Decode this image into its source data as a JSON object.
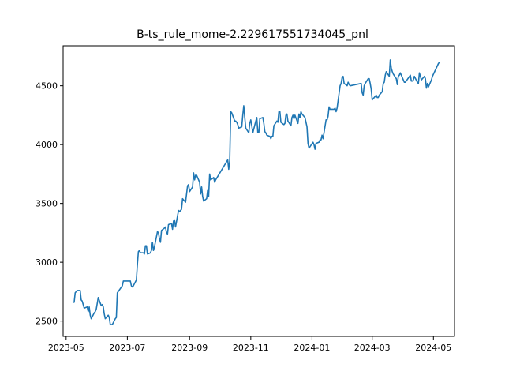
{
  "chart_data": {
    "type": "line",
    "title": "B-ts_rule_mome-2.229617551734045_pnl",
    "xlabel": "",
    "ylabel": "",
    "grid": false,
    "legend": "none",
    "line_color": "#1f77b4",
    "xlim": [
      "2023-04-28",
      "2024-05-22"
    ],
    "ylim": [
      2370,
      4840
    ],
    "x_ticks": [
      "2023-05",
      "2023-07",
      "2023-09",
      "2023-11",
      "2024-01",
      "2024-03",
      "2024-05"
    ],
    "x_tick_dates": [
      "2023-05-01",
      "2023-07-01",
      "2023-09-01",
      "2023-11-01",
      "2024-01-01",
      "2024-03-01",
      "2024-05-01"
    ],
    "y_ticks": [
      2500,
      3000,
      3500,
      4000,
      4500
    ],
    "y_tick_labels": [
      "2500",
      "3000",
      "3500",
      "4000",
      "4500"
    ],
    "series": [
      {
        "x": [
          "2023-05-08",
          "2023-05-09",
          "2023-05-10",
          "2023-05-11",
          "2023-05-12",
          "2023-05-15",
          "2023-05-16",
          "2023-05-17",
          "2023-05-18",
          "2023-05-19",
          "2023-05-22",
          "2023-05-23",
          "2023-05-24",
          "2023-05-25",
          "2023-05-26",
          "2023-05-29",
          "2023-05-30",
          "2023-05-31",
          "2023-06-01",
          "2023-06-02",
          "2023-06-05",
          "2023-06-06",
          "2023-06-07",
          "2023-06-08",
          "2023-06-09",
          "2023-06-12",
          "2023-06-13",
          "2023-06-14",
          "2023-06-15",
          "2023-06-16",
          "2023-06-19",
          "2023-06-20",
          "2023-06-21",
          "2023-06-26",
          "2023-06-27",
          "2023-06-28",
          "2023-06-29",
          "2023-06-30",
          "2023-07-03",
          "2023-07-04",
          "2023-07-05",
          "2023-07-06",
          "2023-07-07",
          "2023-07-10",
          "2023-07-11",
          "2023-07-12",
          "2023-07-13",
          "2023-07-14",
          "2023-07-17",
          "2023-07-18",
          "2023-07-19",
          "2023-07-20",
          "2023-07-21",
          "2023-07-24",
          "2023-07-25",
          "2023-07-26",
          "2023-07-27",
          "2023-07-28",
          "2023-07-31",
          "2023-08-01",
          "2023-08-02",
          "2023-08-03",
          "2023-08-04",
          "2023-08-07",
          "2023-08-08",
          "2023-08-09",
          "2023-08-10",
          "2023-08-11",
          "2023-08-14",
          "2023-08-15",
          "2023-08-16",
          "2023-08-17",
          "2023-08-18",
          "2023-08-21",
          "2023-08-22",
          "2023-08-23",
          "2023-08-24",
          "2023-08-25",
          "2023-08-28",
          "2023-08-29",
          "2023-08-30",
          "2023-08-31",
          "2023-09-01",
          "2023-09-04",
          "2023-09-05",
          "2023-09-06",
          "2023-09-07",
          "2023-09-08",
          "2023-09-11",
          "2023-09-12",
          "2023-09-13",
          "2023-09-14",
          "2023-09-15",
          "2023-09-18",
          "2023-09-19",
          "2023-09-20",
          "2023-09-21",
          "2023-09-22",
          "2023-09-25",
          "2023-09-26",
          "2023-09-27",
          "2023-10-09",
          "2023-10-10",
          "2023-10-11",
          "2023-10-12",
          "2023-10-13",
          "2023-10-16",
          "2023-10-17",
          "2023-10-18",
          "2023-10-19",
          "2023-10-20",
          "2023-10-23",
          "2023-10-24",
          "2023-10-25",
          "2023-10-26",
          "2023-10-27",
          "2023-10-30",
          "2023-10-31",
          "2023-11-01",
          "2023-11-02",
          "2023-11-03",
          "2023-11-06",
          "2023-11-07",
          "2023-11-08",
          "2023-11-09",
          "2023-11-10",
          "2023-11-13",
          "2023-11-14",
          "2023-11-15",
          "2023-11-16",
          "2023-11-17",
          "2023-11-20",
          "2023-11-21",
          "2023-11-22",
          "2023-11-23",
          "2023-11-24",
          "2023-11-27",
          "2023-11-28",
          "2023-11-29",
          "2023-11-30",
          "2023-12-01",
          "2023-12-04",
          "2023-12-05",
          "2023-12-06",
          "2023-12-07",
          "2023-12-08",
          "2023-12-11",
          "2023-12-12",
          "2023-12-13",
          "2023-12-14",
          "2023-12-15",
          "2023-12-18",
          "2023-12-19",
          "2023-12-20",
          "2023-12-21",
          "2023-12-22",
          "2023-12-25",
          "2023-12-26",
          "2023-12-27",
          "2023-12-28",
          "2023-12-29",
          "2024-01-02",
          "2024-01-03",
          "2024-01-04",
          "2024-01-05",
          "2024-01-08",
          "2024-01-09",
          "2024-01-10",
          "2024-01-11",
          "2024-01-12",
          "2024-01-15",
          "2024-01-16",
          "2024-01-17",
          "2024-01-18",
          "2024-01-19",
          "2024-01-22",
          "2024-01-23",
          "2024-01-24",
          "2024-01-25",
          "2024-01-26",
          "2024-01-29",
          "2024-01-30",
          "2024-01-31",
          "2024-02-01",
          "2024-02-02",
          "2024-02-05",
          "2024-02-06",
          "2024-02-07",
          "2024-02-08",
          "2024-02-19",
          "2024-02-20",
          "2024-02-21",
          "2024-02-22",
          "2024-02-23",
          "2024-02-26",
          "2024-02-27",
          "2024-02-28",
          "2024-02-29",
          "2024-03-01",
          "2024-03-04",
          "2024-03-05",
          "2024-03-06",
          "2024-03-07",
          "2024-03-08",
          "2024-03-11",
          "2024-03-12",
          "2024-03-13",
          "2024-03-14",
          "2024-03-15",
          "2024-03-18",
          "2024-03-19",
          "2024-03-20",
          "2024-03-21",
          "2024-03-22",
          "2024-03-25",
          "2024-03-26",
          "2024-03-27",
          "2024-03-28",
          "2024-03-29",
          "2024-04-01",
          "2024-04-02",
          "2024-04-03",
          "2024-04-08",
          "2024-04-09",
          "2024-04-10",
          "2024-04-11",
          "2024-04-12",
          "2024-04-15",
          "2024-04-16",
          "2024-04-17",
          "2024-04-18",
          "2024-04-19",
          "2024-04-22",
          "2024-04-23",
          "2024-04-24",
          "2024-04-25",
          "2024-04-26",
          "2024-04-29",
          "2024-04-30",
          "2024-05-06",
          "2024-05-07"
        ],
        "values": [
          2660,
          2660,
          2740,
          2750,
          2760,
          2760,
          2680,
          2670,
          2640,
          2610,
          2620,
          2580,
          2620,
          2550,
          2520,
          2570,
          2580,
          2600,
          2650,
          2700,
          2630,
          2640,
          2620,
          2560,
          2520,
          2550,
          2530,
          2470,
          2470,
          2470,
          2520,
          2530,
          2740,
          2800,
          2840,
          2840,
          2840,
          2840,
          2840,
          2840,
          2800,
          2790,
          2800,
          2850,
          2980,
          3090,
          3100,
          3080,
          3080,
          3070,
          3140,
          3140,
          3070,
          3080,
          3100,
          3170,
          3100,
          3130,
          3260,
          3250,
          3200,
          3170,
          3270,
          3290,
          3300,
          3250,
          3240,
          3320,
          3330,
          3280,
          3350,
          3360,
          3300,
          3440,
          3430,
          3440,
          3450,
          3540,
          3510,
          3580,
          3650,
          3660,
          3600,
          3640,
          3760,
          3700,
          3740,
          3740,
          3680,
          3580,
          3640,
          3560,
          3520,
          3540,
          3610,
          3560,
          3750,
          3700,
          3720,
          3680,
          3700,
          3870,
          3790,
          3860,
          4280,
          4270,
          4200,
          4200,
          4190,
          4170,
          4140,
          4150,
          4250,
          4330,
          4230,
          4140,
          4100,
          4180,
          4210,
          4160,
          4100,
          4200,
          4230,
          4100,
          4100,
          4220,
          4230,
          4180,
          4110,
          4100,
          4080,
          4070,
          4050,
          4070,
          4070,
          4160,
          4200,
          4190,
          4280,
          4280,
          4190,
          4170,
          4180,
          4250,
          4260,
          4200,
          4160,
          4230,
          4250,
          4220,
          4250,
          4180,
          4260,
          4230,
          4280,
          4260,
          4230,
          4190,
          4150,
          4010,
          3970,
          4020,
          4000,
          3960,
          4010,
          4020,
          4040,
          4040,
          4080,
          4050,
          4210,
          4210,
          4240,
          4320,
          4300,
          4300,
          4300,
          4310,
          4280,
          4310,
          4500,
          4520,
          4570,
          4580,
          4520,
          4500,
          4530,
          4510,
          4500,
          4520,
          4440,
          4420,
          4500,
          4520,
          4560,
          4560,
          4520,
          4470,
          4380,
          4410,
          4420,
          4400,
          4400,
          4420,
          4450,
          4520,
          4530,
          4590,
          4620,
          4580,
          4720,
          4650,
          4620,
          4600,
          4560,
          4510,
          4580,
          4590,
          4610,
          4550,
          4530,
          4530,
          4590,
          4540,
          4540,
          4550,
          4580,
          4530,
          4520,
          4610,
          4580,
          4550,
          4580,
          4560,
          4480,
          4520,
          4490,
          4550,
          4580,
          4690,
          4700
        ]
      }
    ]
  }
}
